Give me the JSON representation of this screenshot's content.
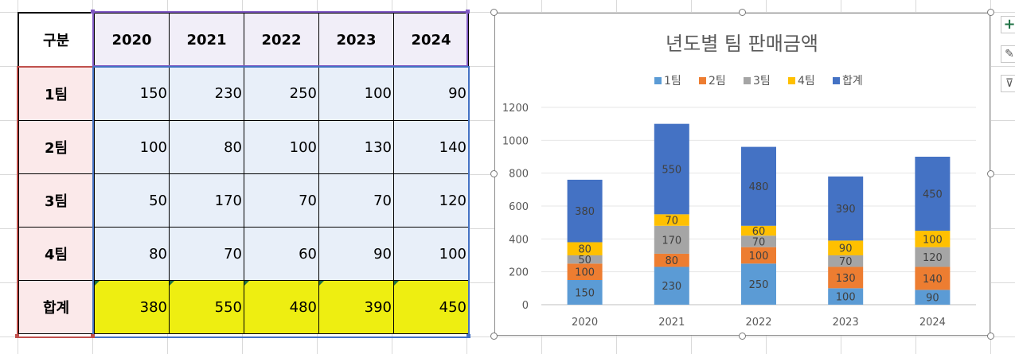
{
  "table": {
    "corner": "구분",
    "years": [
      "2020",
      "2021",
      "2022",
      "2023",
      "2024"
    ],
    "rows": [
      {
        "label": "1팀",
        "values": [
          "150",
          "230",
          "250",
          "100",
          "90"
        ]
      },
      {
        "label": "2팀",
        "values": [
          "100",
          "80",
          "100",
          "130",
          "140"
        ]
      },
      {
        "label": "3팀",
        "values": [
          "50",
          "170",
          "70",
          "70",
          "120"
        ]
      },
      {
        "label": "4팀",
        "values": [
          "80",
          "70",
          "60",
          "90",
          "100"
        ]
      }
    ],
    "total": {
      "label": "합계",
      "values": [
        "380",
        "550",
        "480",
        "390",
        "450"
      ]
    }
  },
  "chart_data": {
    "type": "bar",
    "stacked": true,
    "title": "년도별 팀 판매금액",
    "categories": [
      "2020",
      "2021",
      "2022",
      "2023",
      "2024"
    ],
    "series": [
      {
        "name": "1팀",
        "values": [
          150,
          230,
          250,
          100,
          90
        ],
        "color": "#5b9bd5"
      },
      {
        "name": "2팀",
        "values": [
          100,
          80,
          100,
          130,
          140
        ],
        "color": "#ed7d31"
      },
      {
        "name": "3팀",
        "values": [
          50,
          170,
          70,
          70,
          120
        ],
        "color": "#a5a5a5"
      },
      {
        "name": "4팀",
        "values": [
          80,
          70,
          60,
          90,
          100
        ],
        "color": "#ffc000"
      },
      {
        "name": "합계",
        "values": [
          380,
          550,
          480,
          390,
          450
        ],
        "color": "#4472c4"
      }
    ],
    "ylim": [
      0,
      1200
    ],
    "yticks": [
      0,
      200,
      400,
      600,
      800,
      1000,
      1200
    ],
    "xlabel": "",
    "ylabel": "",
    "legend_position": "top"
  },
  "side_buttons": {
    "add": "+",
    "brush": "✎",
    "filter": "⊽"
  }
}
